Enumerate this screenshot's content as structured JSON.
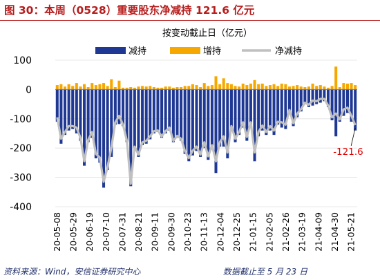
{
  "title": "图 30：本周（0528）重要股东净减持 121.6 亿元",
  "footer": {
    "source": "资料来源：Wind，安信证券研究中心",
    "date_note": "数据截止至 5 月 23 日"
  },
  "chart_data": {
    "type": "bar",
    "subtitle": "按变动截止日（亿元）",
    "ylim": [
      -400,
      100
    ],
    "yticks": [
      100,
      0,
      -100,
      -200,
      -300,
      -400
    ],
    "xtick_labels": [
      "20-05-08",
      "20-05-29",
      "20-06-19",
      "20-07-10",
      "20-07-31",
      "20-08-21",
      "20-09-11",
      "20-09-30",
      "20-10-23",
      "20-11-13",
      "20-12-04",
      "20-12-25",
      "21-01-15",
      "21-02-05",
      "21-02-26",
      "21-03-19",
      "21-04-09",
      "21-04-30",
      "21-05-21"
    ],
    "annotation": {
      "text": "-121.6"
    },
    "colors": {
      "reduce": "#1f3894",
      "increase": "#f7a800",
      "net": "#c0c0c0",
      "annotation": "#e00000"
    },
    "series": [
      {
        "name": "减持",
        "values": [
          -110,
          -185,
          -155,
          -140,
          -135,
          -150,
          -175,
          -260,
          -180,
          -165,
          -235,
          -250,
          -335,
          -275,
          -230,
          -120,
          -118,
          -125,
          -180,
          -330,
          -200,
          -230,
          -190,
          -185,
          -170,
          -150,
          -145,
          -165,
          -150,
          -140,
          -180,
          -165,
          -175,
          -220,
          -245,
          -225,
          -210,
          -230,
          -200,
          -240,
          -205,
          -285,
          -195,
          -195,
          -235,
          -140,
          -180,
          -155,
          -130,
          -175,
          -130,
          -245,
          -160,
          -140,
          -155,
          -140,
          -155,
          -120,
          -130,
          -135,
          -80,
          -125,
          -95,
          -75,
          -50,
          -60,
          -55,
          -50,
          -45,
          -40,
          -60,
          -105,
          -160,
          -110,
          -90,
          -80,
          -110,
          -140
        ]
      },
      {
        "name": "增持",
        "values": [
          15,
          18,
          10,
          18,
          12,
          22,
          10,
          18,
          8,
          22,
          15,
          18,
          22,
          12,
          35,
          8,
          30,
          6,
          6,
          8,
          6,
          10,
          12,
          10,
          12,
          8,
          6,
          6,
          10,
          10,
          6,
          8,
          8,
          12,
          12,
          18,
          15,
          8,
          22,
          12,
          15,
          45,
          18,
          38,
          22,
          18,
          12,
          10,
          20,
          15,
          20,
          32,
          18,
          20,
          12,
          15,
          18,
          12,
          20,
          18,
          10,
          12,
          15,
          10,
          8,
          10,
          20,
          12,
          15,
          10,
          6,
          12,
          78,
          8,
          22,
          20,
          22,
          15
        ]
      },
      {
        "name": "净减持",
        "values": [
          -95,
          -168,
          -145,
          -125,
          -125,
          -130,
          -165,
          -245,
          -172,
          -145,
          -220,
          -232,
          -315,
          -265,
          -198,
          -112,
          -90,
          -120,
          -175,
          -322,
          -195,
          -222,
          -180,
          -175,
          -160,
          -142,
          -140,
          -160,
          -142,
          -130,
          -175,
          -158,
          -168,
          -210,
          -234,
          -209,
          -195,
          -222,
          -180,
          -228,
          -190,
          -245,
          -180,
          -160,
          -215,
          -125,
          -168,
          -145,
          -112,
          -162,
          -112,
          -215,
          -145,
          -123,
          -145,
          -125,
          -140,
          -110,
          -112,
          -120,
          -70,
          -115,
          -82,
          -67,
          -45,
          -52,
          -38,
          -40,
          -32,
          -32,
          -55,
          -95,
          -82,
          -102,
          -68,
          -62,
          -90,
          -121.6
        ]
      }
    ]
  }
}
